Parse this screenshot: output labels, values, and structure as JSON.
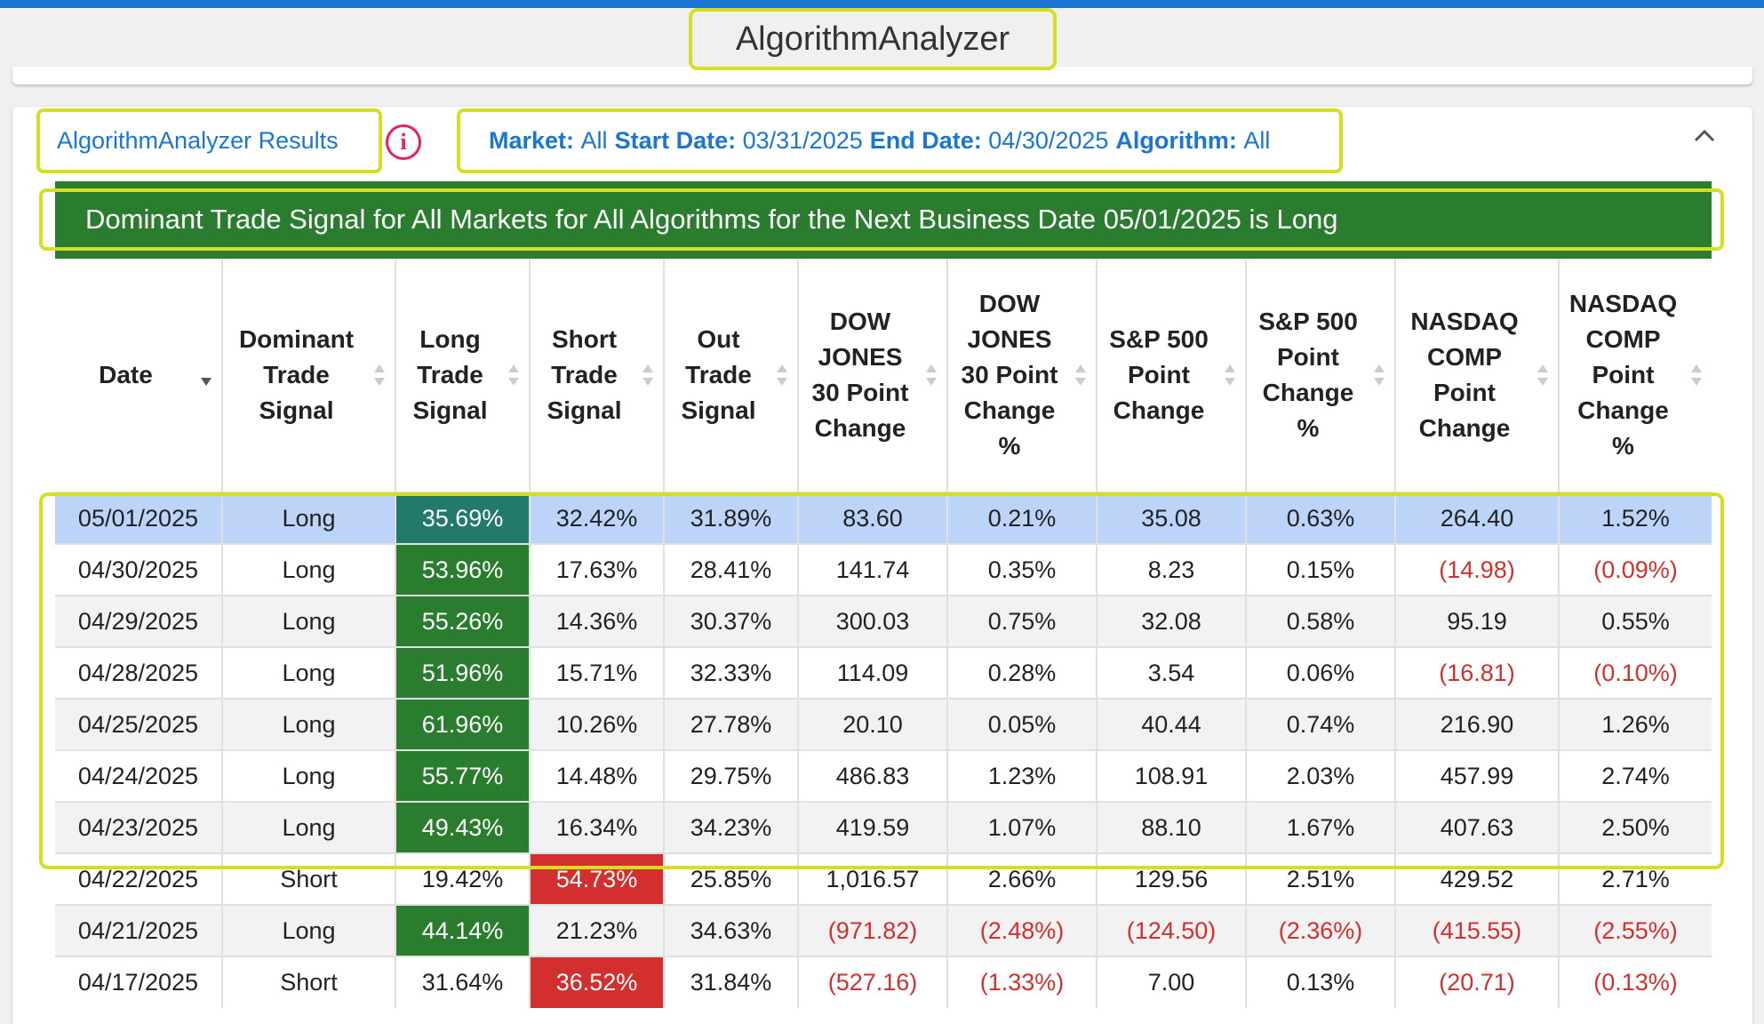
{
  "app": {
    "title": "AlgorithmAnalyzer"
  },
  "results": {
    "title": "AlgorithmAnalyzer Results"
  },
  "filters": {
    "market_label": "Market:",
    "market_value": "All",
    "start_label": "Start Date:",
    "start_value": "03/31/2025",
    "end_label": "End Date:",
    "end_value": "04/30/2025",
    "algorithm_label": "Algorithm:",
    "algorithm_value": "All"
  },
  "banner": {
    "text": "Dominant Trade Signal for All Markets for All Algorithms for the Next Business Date 05/01/2025 is Long"
  },
  "table": {
    "columns": [
      "Date",
      "Dominant Trade Signal",
      "Long Trade Signal",
      "Short Trade Signal",
      "Out Trade Signal",
      "DOW JONES 30 Point Change",
      "DOW JONES 30 Point Change %",
      "S&P 500 Point Change",
      "S&P 500 Point Change %",
      "NASDAQ COMP Point Change",
      "NASDAQ COMP Point Change %"
    ],
    "rows": [
      {
        "date": "05/01/2025",
        "dominant": "Long",
        "long": "35.69%",
        "short": "32.42%",
        "out": "31.89%",
        "dow": "83.60",
        "dow_pct": "0.21%",
        "sp": "35.08",
        "sp_pct": "0.63%",
        "nasdaq": "264.40",
        "nasdaq_pct": "1.52%"
      },
      {
        "date": "04/30/2025",
        "dominant": "Long",
        "long": "53.96%",
        "short": "17.63%",
        "out": "28.41%",
        "dow": "141.74",
        "dow_pct": "0.35%",
        "sp": "8.23",
        "sp_pct": "0.15%",
        "nasdaq": "(14.98)",
        "nasdaq_pct": "(0.09%)"
      },
      {
        "date": "04/29/2025",
        "dominant": "Long",
        "long": "55.26%",
        "short": "14.36%",
        "out": "30.37%",
        "dow": "300.03",
        "dow_pct": "0.75%",
        "sp": "32.08",
        "sp_pct": "0.58%",
        "nasdaq": "95.19",
        "nasdaq_pct": "0.55%"
      },
      {
        "date": "04/28/2025",
        "dominant": "Long",
        "long": "51.96%",
        "short": "15.71%",
        "out": "32.33%",
        "dow": "114.09",
        "dow_pct": "0.28%",
        "sp": "3.54",
        "sp_pct": "0.06%",
        "nasdaq": "(16.81)",
        "nasdaq_pct": "(0.10%)"
      },
      {
        "date": "04/25/2025",
        "dominant": "Long",
        "long": "61.96%",
        "short": "10.26%",
        "out": "27.78%",
        "dow": "20.10",
        "dow_pct": "0.05%",
        "sp": "40.44",
        "sp_pct": "0.74%",
        "nasdaq": "216.90",
        "nasdaq_pct": "1.26%"
      },
      {
        "date": "04/24/2025",
        "dominant": "Long",
        "long": "55.77%",
        "short": "14.48%",
        "out": "29.75%",
        "dow": "486.83",
        "dow_pct": "1.23%",
        "sp": "108.91",
        "sp_pct": "2.03%",
        "nasdaq": "457.99",
        "nasdaq_pct": "2.74%"
      },
      {
        "date": "04/23/2025",
        "dominant": "Long",
        "long": "49.43%",
        "short": "16.34%",
        "out": "34.23%",
        "dow": "419.59",
        "dow_pct": "1.07%",
        "sp": "88.10",
        "sp_pct": "1.67%",
        "nasdaq": "407.63",
        "nasdaq_pct": "2.50%"
      },
      {
        "date": "04/22/2025",
        "dominant": "Short",
        "long": "19.42%",
        "short": "54.73%",
        "out": "25.85%",
        "dow": "1,016.57",
        "dow_pct": "2.66%",
        "sp": "129.56",
        "sp_pct": "2.51%",
        "nasdaq": "429.52",
        "nasdaq_pct": "2.71%"
      },
      {
        "date": "04/21/2025",
        "dominant": "Long",
        "long": "44.14%",
        "short": "21.23%",
        "out": "34.63%",
        "dow": "(971.82)",
        "dow_pct": "(2.48%)",
        "sp": "(124.50)",
        "sp_pct": "(2.36%)",
        "nasdaq": "(415.55)",
        "nasdaq_pct": "(2.55%)"
      },
      {
        "date": "04/17/2025",
        "dominant": "Short",
        "long": "31.64%",
        "short": "36.52%",
        "out": "31.84%",
        "dow": "(527.16)",
        "dow_pct": "(1.33%)",
        "sp": "7.00",
        "sp_pct": "0.13%",
        "nasdaq": "(20.71)",
        "nasdaq_pct": "(0.13%)"
      }
    ]
  },
  "colors": {
    "accent": "#1976d2",
    "long": "#2a7d2e",
    "long_selected": "#227a6c",
    "short": "#d32f2f",
    "highlight": "#d4e01f",
    "selected_row": "#bcd4f7"
  }
}
